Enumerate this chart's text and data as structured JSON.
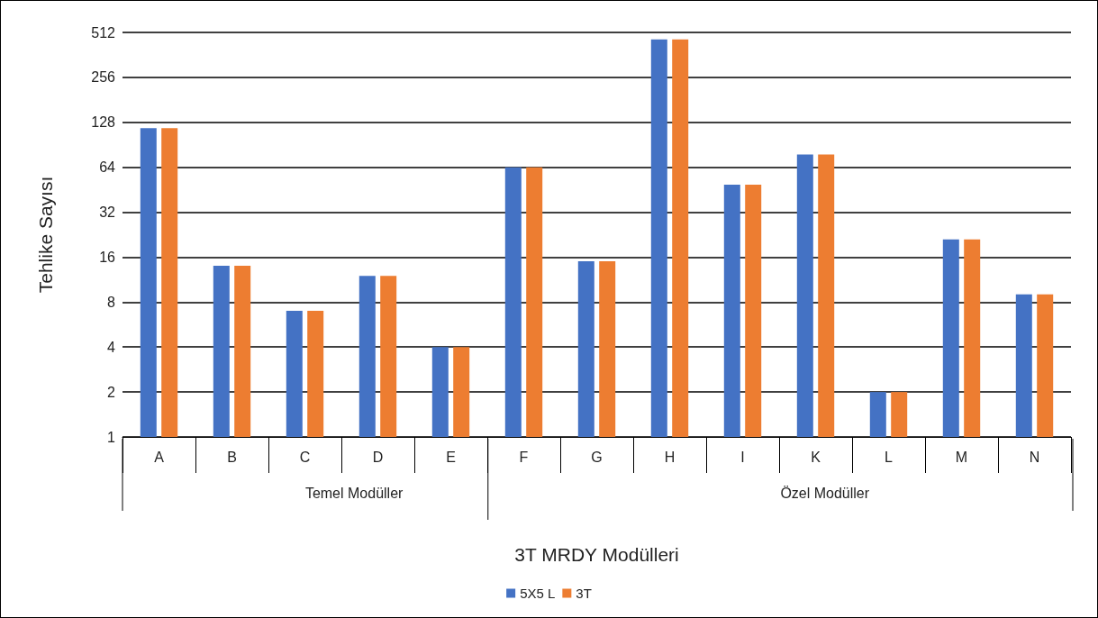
{
  "chart_data": {
    "type": "bar",
    "xlabel": "3T MRDY Modülleri",
    "ylabel": "Tehlike Sayısı",
    "categories": [
      "A",
      "B",
      "C",
      "D",
      "E",
      "F",
      "G",
      "H",
      "I",
      "K",
      "L",
      "M",
      "N"
    ],
    "series": [
      {
        "name": "5X5 L",
        "color": "#4472c4",
        "values": [
          117,
          14,
          7,
          12,
          4,
          64,
          15,
          459,
          49,
          78,
          2,
          21,
          9
        ]
      },
      {
        "name": "3T",
        "color": "#ed7d31",
        "values": [
          117,
          14,
          7,
          12,
          4,
          64,
          15,
          459,
          49,
          78,
          2,
          21,
          9
        ]
      }
    ],
    "annotations": [
      "Temel Modüller",
      "Özel Modüller"
    ],
    "log": "y",
    "ylim": [
      1,
      512
    ],
    "yticks": [
      1,
      2,
      4,
      8,
      16,
      32,
      64,
      128,
      256,
      512
    ],
    "grid": "y",
    "legend": "bottom"
  }
}
